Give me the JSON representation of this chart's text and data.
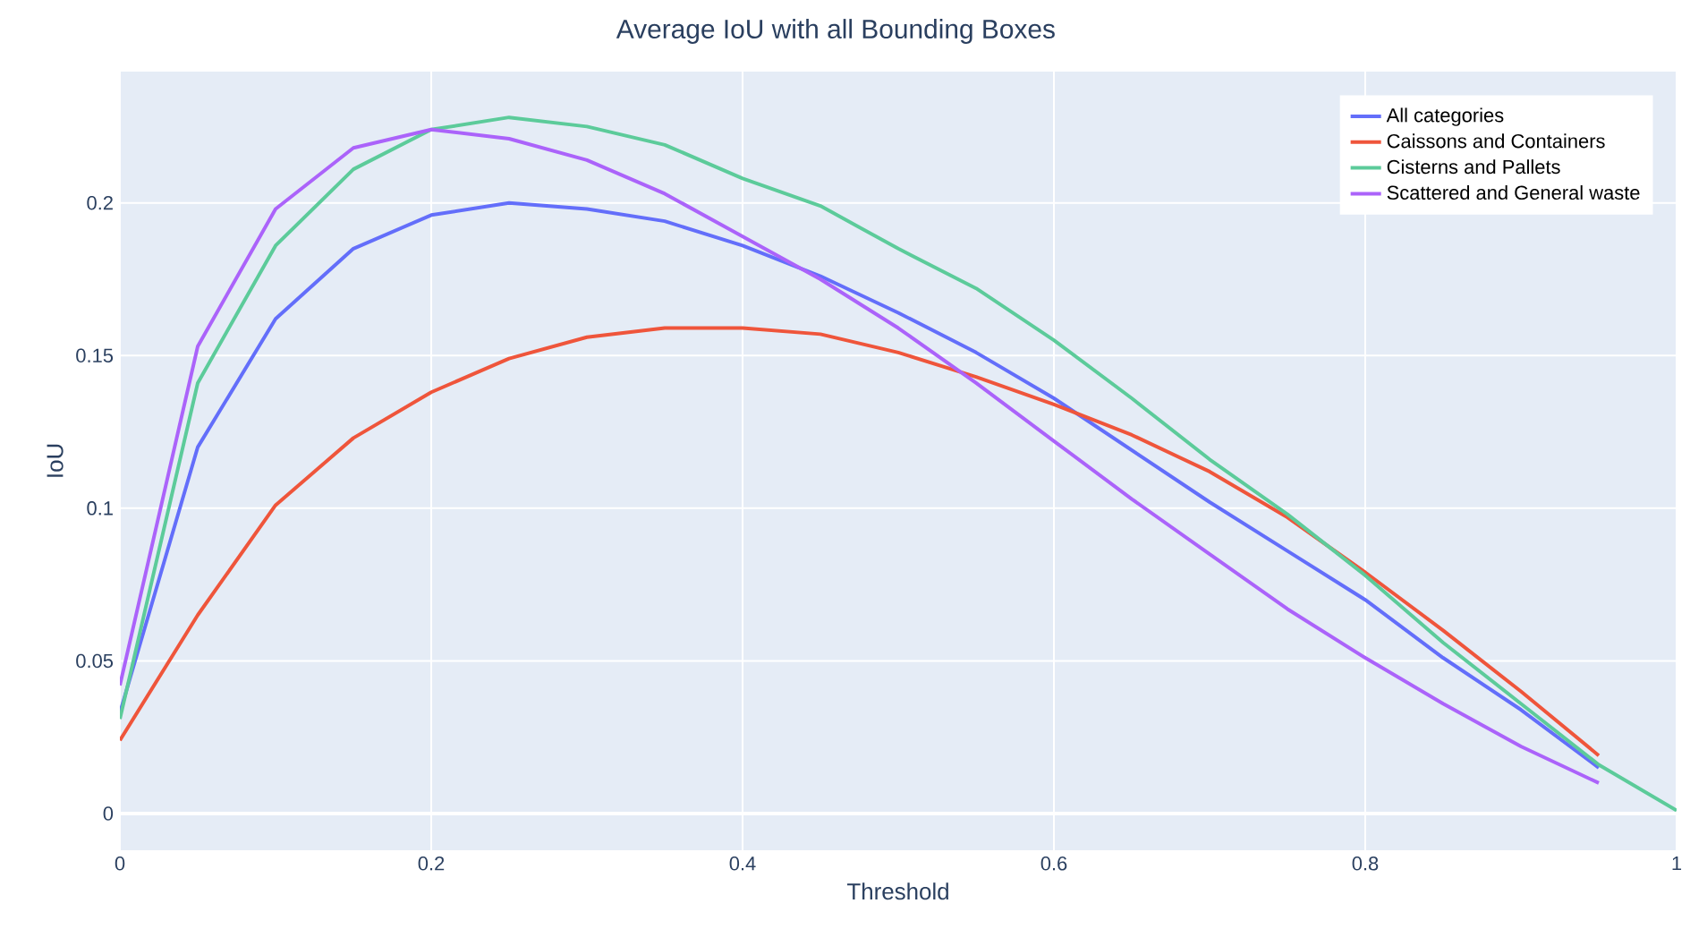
{
  "chart_data": {
    "type": "line",
    "title": "Average IoU with all Bounding Boxes",
    "xlabel": "Threshold",
    "ylabel": "IoU",
    "x": [
      0,
      0.05,
      0.1,
      0.15,
      0.2,
      0.25,
      0.3,
      0.35,
      0.4,
      0.45,
      0.5,
      0.55,
      0.6,
      0.65,
      0.7,
      0.75,
      0.8,
      0.85,
      0.9,
      0.95
    ],
    "series": [
      {
        "name": "All categories",
        "color": "#636efa",
        "values": [
          0.033,
          0.12,
          0.162,
          0.185,
          0.196,
          0.2,
          0.198,
          0.194,
          0.186,
          0.176,
          0.164,
          0.151,
          0.136,
          0.119,
          0.102,
          0.086,
          0.07,
          0.051,
          0.034,
          0.015
        ]
      },
      {
        "name": "Caissons and Containers",
        "color": "#ef553b",
        "values": [
          0.024,
          0.065,
          0.101,
          0.123,
          0.138,
          0.149,
          0.156,
          0.159,
          0.159,
          0.157,
          0.151,
          0.143,
          0.134,
          0.124,
          0.112,
          0.097,
          0.079,
          0.06,
          0.04,
          0.019
        ]
      },
      {
        "name": "Cisterns and Pallets",
        "color": "#5ccb9a",
        "x": [
          0,
          0.05,
          0.1,
          0.15,
          0.2,
          0.25,
          0.3,
          0.35,
          0.4,
          0.45,
          0.5,
          0.55,
          0.6,
          0.65,
          0.7,
          0.75,
          0.8,
          0.85,
          0.9,
          0.95,
          1.0
        ],
        "values": [
          0.031,
          0.141,
          0.186,
          0.211,
          0.224,
          0.228,
          0.225,
          0.219,
          0.208,
          0.199,
          0.185,
          0.172,
          0.155,
          0.136,
          0.116,
          0.098,
          0.078,
          0.056,
          0.036,
          0.016,
          0.001
        ]
      },
      {
        "name": "Scattered and General waste",
        "color": "#ab63fa",
        "values": [
          0.042,
          0.153,
          0.198,
          0.218,
          0.224,
          0.221,
          0.214,
          0.203,
          0.189,
          0.175,
          0.159,
          0.141,
          0.122,
          0.103,
          0.085,
          0.067,
          0.051,
          0.036,
          0.022,
          0.01
        ]
      }
    ],
    "xlim": [
      0,
      1
    ],
    "xticks": [
      0,
      0.2,
      0.4,
      0.6,
      0.8,
      1
    ],
    "ylim": [
      -0.012,
      0.243
    ],
    "yticks": [
      0,
      0.05,
      0.1,
      0.15,
      0.2
    ],
    "grid": true,
    "legend": "top right",
    "marker": "none",
    "line_style": "solid"
  }
}
